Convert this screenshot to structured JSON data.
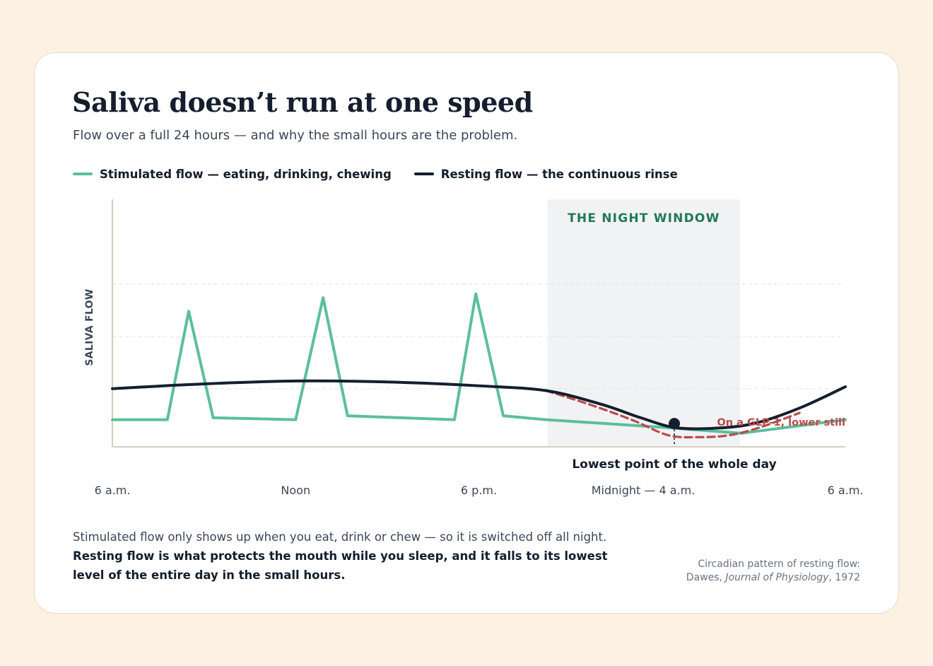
{
  "header": {
    "title": "Saliva doesn’t run at one speed",
    "subtitle": "Flow over a full 24 hours — and why the small hours are the problem."
  },
  "colors": {
    "stimulated": "#5bbf9a",
    "resting": "#141e2e",
    "glp1": "#b94a4a",
    "night_band": "#f1f2f3",
    "night_label": "#1f7a55",
    "axis": "#d6cdbf"
  },
  "chart_data": {
    "type": "line",
    "title": "",
    "xlabel": "",
    "ylabel": "SALIVA FLOW",
    "x_domain": [
      0,
      24
    ],
    "y_domain": [
      0,
      100
    ],
    "x_ticks": [
      {
        "x": 0,
        "label": "6 a.m."
      },
      {
        "x": 6,
        "label": "Noon"
      },
      {
        "x": 12,
        "label": "6 p.m."
      },
      {
        "x": 18,
        "label": "Midnight — 4 a.m."
      },
      {
        "x": 24,
        "label": "6 a.m."
      }
    ],
    "y_gridlines": [
      30,
      57,
      84
    ],
    "grid": "dashed horizontal",
    "legend_position": "top-left",
    "series": [
      {
        "name": "Stimulated flow — eating, drinking, chewing",
        "key": "stimulated",
        "points": [
          [
            0,
            14
          ],
          [
            1.8,
            14
          ],
          [
            2.5,
            70
          ],
          [
            3.3,
            15
          ],
          [
            6,
            14
          ],
          [
            6.9,
            77
          ],
          [
            7.7,
            16
          ],
          [
            11.2,
            14
          ],
          [
            11.9,
            79
          ],
          [
            12.8,
            16
          ],
          [
            14.2,
            14
          ],
          [
            18.1,
            10
          ],
          [
            20.6,
            7
          ],
          [
            24,
            14
          ]
        ]
      },
      {
        "name": "Resting flow — the continuous rinse",
        "key": "resting",
        "points": [
          [
            0,
            30
          ],
          [
            3,
            32.5
          ],
          [
            6,
            34
          ],
          [
            9,
            33.5
          ],
          [
            12,
            31.5
          ],
          [
            14.2,
            29
          ],
          [
            16,
            22
          ],
          [
            17.3,
            15
          ],
          [
            18.4,
            10
          ],
          [
            19.6,
            9.5
          ],
          [
            21,
            12
          ],
          [
            22.5,
            20
          ],
          [
            24,
            31
          ]
        ]
      },
      {
        "name": "",
        "key": "glp1",
        "points": [
          [
            14.2,
            29
          ],
          [
            15.6,
            22
          ],
          [
            17,
            14
          ],
          [
            18.2,
            6
          ],
          [
            19.2,
            5
          ],
          [
            20.2,
            6
          ],
          [
            21.2,
            10
          ],
          [
            22.5,
            17.5
          ]
        ]
      }
    ],
    "annotations": {
      "night_window": {
        "x_start": 14.25,
        "x_end": 20.55,
        "label": "THE NIGHT WINDOW"
      },
      "lowest_point": {
        "x": 18.4,
        "y": 12,
        "label": "Lowest point of the whole day"
      },
      "glp1_label": "On a GLP-1, lower still"
    }
  },
  "footnote": {
    "line1": "Stimulated flow only shows up when you eat, drink or chew — so it is switched off all night.",
    "emphasis": "Resting flow is what protects the mouth while you sleep, and it falls to its lowest level of the entire day in the small hours."
  },
  "source": {
    "line1": "Circadian pattern of resting flow:",
    "author": "Dawes, ",
    "journal": "Journal of Physiology",
    "year": ", 1972"
  }
}
